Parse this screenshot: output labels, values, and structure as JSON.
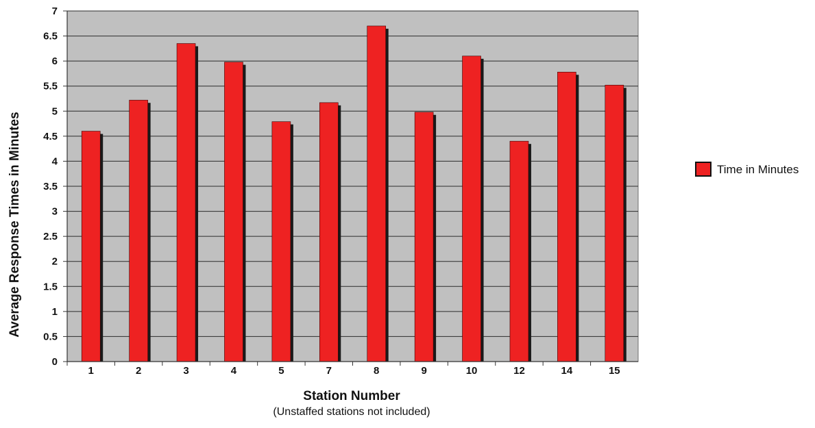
{
  "chart_data": {
    "type": "bar",
    "categories": [
      "1",
      "2",
      "3",
      "4",
      "5",
      "7",
      "8",
      "9",
      "10",
      "12",
      "14",
      "15"
    ],
    "series": [
      {
        "name": "Time in Minutes",
        "values": [
          4.6,
          5.22,
          6.35,
          5.98,
          4.79,
          5.17,
          6.7,
          4.98,
          6.1,
          4.4,
          5.78,
          5.52
        ],
        "color": "#ee2222"
      }
    ],
    "xlabel": "Station Number",
    "xlabel_note": "(Unstaffed stations not included)",
    "ylabel": "Average Response Times in Minutes",
    "ylim": [
      0,
      7
    ],
    "y_ticks": [
      "0",
      "0.5",
      "1",
      "1.5",
      "2",
      "2.5",
      "3",
      "3.5",
      "4",
      "4.5",
      "5",
      "5.5",
      "6",
      "6.5",
      "7"
    ],
    "grid": true,
    "plot_background": "#c0c0c0",
    "legend": {
      "position": "right",
      "entries": [
        "Time in Minutes"
      ]
    }
  }
}
